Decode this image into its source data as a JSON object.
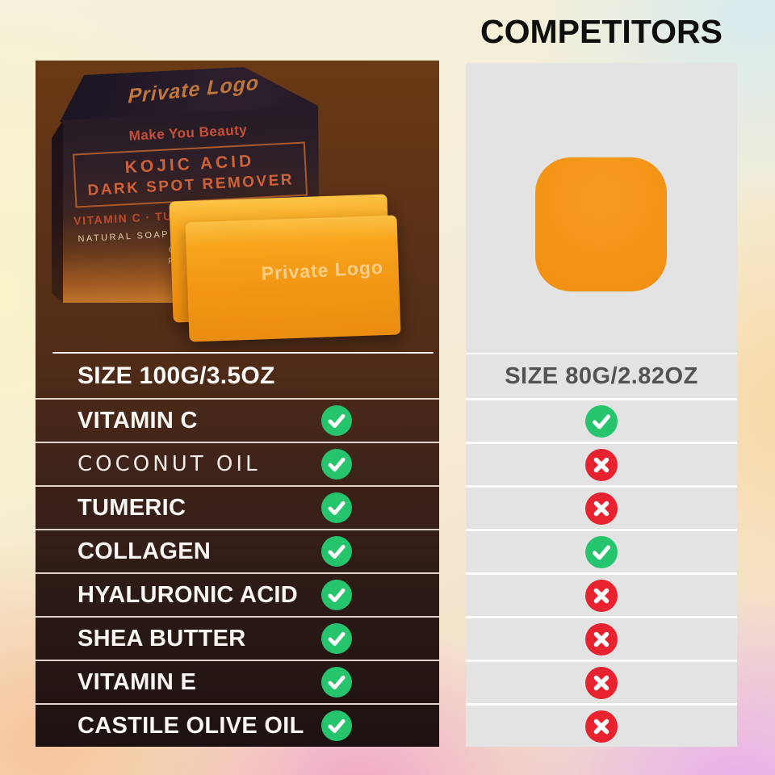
{
  "competitor": {
    "heading": "COMPETITORS",
    "size_label": "SIZE 80G/2.82OZ"
  },
  "our_product": {
    "box": {
      "logo": "Private Logo",
      "tagline": "Make You Beauty",
      "title_line1": "KOJIC ACID",
      "title_line2": "DARK SPOT REMOVER",
      "ingredients_line": "VITAMIN C · TURMERIC · COLLAGEN",
      "subtitle": "NATURAL SOAP BARS WITH TURMERIC",
      "partial_line1": "ORIGINA",
      "partial_line2": "FOR DAR"
    },
    "soap_label": "Private Logo",
    "size_label": "SIZE 100G/3.5OZ"
  },
  "colors": {
    "check_green": "#26c46c",
    "cross_red": "#e8222f",
    "soap_orange": "#f29113"
  },
  "comparison": {
    "rows": [
      {
        "label": "VITAMIN C",
        "ours": true,
        "competitor": true,
        "style": "normal"
      },
      {
        "label": "COCONUT OIL",
        "ours": true,
        "competitor": false,
        "style": "spaced"
      },
      {
        "label": "TUMERIC",
        "ours": true,
        "competitor": false,
        "style": "normal"
      },
      {
        "label": "COLLAGEN",
        "ours": true,
        "competitor": true,
        "style": "normal"
      },
      {
        "label": "HYALURONIC ACID",
        "ours": true,
        "competitor": false,
        "style": "normal"
      },
      {
        "label": "SHEA BUTTER",
        "ours": true,
        "competitor": false,
        "style": "normal"
      },
      {
        "label": "VITAMIN E",
        "ours": true,
        "competitor": false,
        "style": "normal"
      },
      {
        "label": "CASTILE OLIVE OIL",
        "ours": true,
        "competitor": false,
        "style": "normal"
      }
    ]
  }
}
